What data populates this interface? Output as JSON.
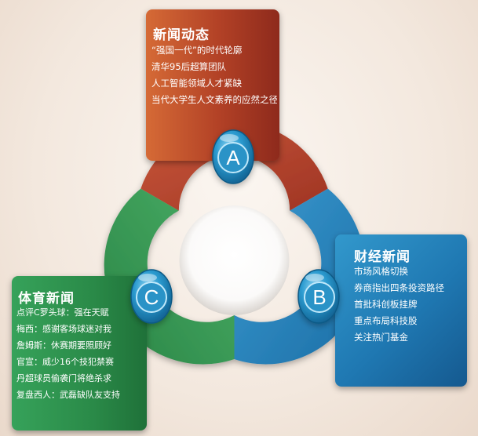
{
  "sections": [
    {
      "letter": "A",
      "title": "新闻动态",
      "items": [
        "“强国一代”的时代轮廓",
        "清华95后超算团队",
        "人工智能领域人才紧缺",
        "当代大学生人文素养的应然之径"
      ]
    },
    {
      "letter": "B",
      "title": "财经新闻",
      "items": [
        "市场风格切换",
        "券商指出四条投资路径",
        "首批科创板挂牌",
        "重点布局科技股",
        "关注热门基金"
      ]
    },
    {
      "letter": "C",
      "title": "体育新闻",
      "items": [
        "点评C罗头球：强在天赋",
        "梅西：感谢客场球迷对我",
        "詹姆斯：休赛期要照顾好",
        "官宣：威少16个技犯禁赛",
        "丹超球员偷袭门将绝杀求",
        "复盘西人：武磊缺队友支持"
      ]
    }
  ],
  "colors": {
    "red": "#b84a2c",
    "blue": "#2a86bf",
    "green": "#3a9d58",
    "badge": "#2b95c9"
  }
}
